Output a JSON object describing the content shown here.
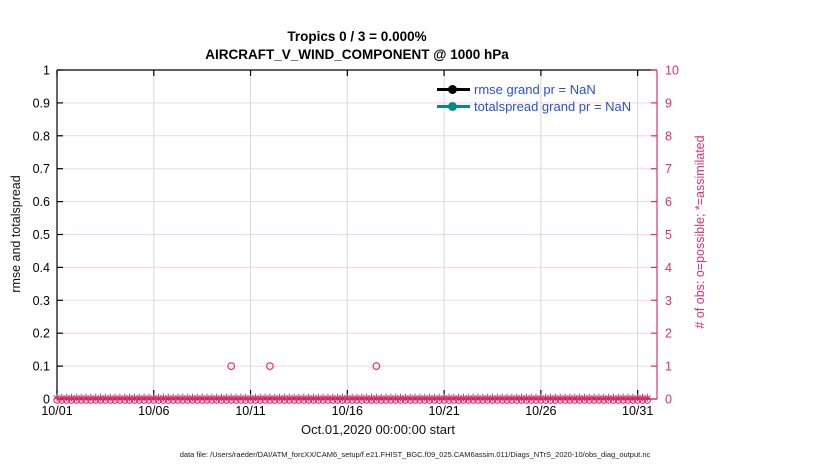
{
  "titles": {
    "line1": "Tropics 0 / 3 = 0.000%",
    "line2": "AIRCRAFT_V_WIND_COMPONENT @ 1000 hPa"
  },
  "footer": {
    "text": "data file: /Users/raeder/DAI/ATM_forcXX/CAM6_setup/f.e21.FHIST_BGC.f09_025.CAM6assim.011/Diags_NTrS_2020-10/obs_diag_output.nc"
  },
  "chart_data": {
    "type": "scatter",
    "title": "Tropics 0 / 3 = 0.000%",
    "subtitle": "AIRCRAFT_V_WIND_COMPONENT @ 1000 hPa",
    "left_axis": {
      "label": "rmse and totalspread",
      "range": [
        0,
        1
      ],
      "ticks": [
        "0",
        "0.1",
        "0.2",
        "0.3",
        "0.4",
        "0.5",
        "0.6",
        "0.7",
        "0.8",
        "0.9",
        "1"
      ],
      "color": "#000000"
    },
    "right_axis": {
      "label": "# of obs: o=possible; *=assimilated",
      "range": [
        0,
        10
      ],
      "ticks": [
        "0",
        "1",
        "2",
        "3",
        "4",
        "5",
        "6",
        "7",
        "8",
        "9",
        "10"
      ],
      "color": "#DE2E6B"
    },
    "x_axis": {
      "label": "Oct.01,2020 00:00:00 start",
      "range_days": [
        0,
        31
      ],
      "tick_days": [
        0,
        5,
        10,
        15,
        20,
        25,
        30
      ],
      "tick_labels": [
        "10/01",
        "10/06",
        "10/11",
        "10/16",
        "10/21",
        "10/26",
        "10/31"
      ]
    },
    "grid": {
      "horizontal_color": "#F6D3DF",
      "vertical_color": "#D8D8D8",
      "horizontal_on": true,
      "vertical_on": true
    },
    "legend": {
      "position": "upper-right-inside",
      "text_color": "#2850D0",
      "items": [
        {
          "label": "rmse grand pr = NaN",
          "color": "#000000",
          "marker": "filled-circle"
        },
        {
          "label": "totalspread grand pr = NaN",
          "color": "#008B8B",
          "marker": "filled-circle"
        }
      ]
    },
    "series": [
      {
        "name": "rmse",
        "axis": "left",
        "grand_mean": "NaN",
        "color": "#000000",
        "marker": "filled-circle",
        "points": []
      },
      {
        "name": "totalspread",
        "axis": "left",
        "grand_mean": "NaN",
        "color": "#008B8B",
        "marker": "filled-circle",
        "points": []
      },
      {
        "name": "possible_obs",
        "axis": "right",
        "color": "#DE2E6B",
        "marker": "open-circle",
        "sampling": {
          "start_day": 0,
          "end_day": 30.5,
          "interval_days": 0.25,
          "baseline_count": 0
        },
        "nonzero_points": [
          {
            "day": 9.0,
            "count": 1
          },
          {
            "day": 11.0,
            "count": 1
          },
          {
            "day": 16.5,
            "count": 1
          }
        ]
      },
      {
        "name": "assimilated_obs",
        "axis": "right",
        "color": "#DE2E6B",
        "marker": "asterisk",
        "sampling": {
          "start_day": 0,
          "end_day": 30.5,
          "interval_days": 0.25,
          "baseline_count": 0
        },
        "nonzero_points": []
      }
    ]
  }
}
